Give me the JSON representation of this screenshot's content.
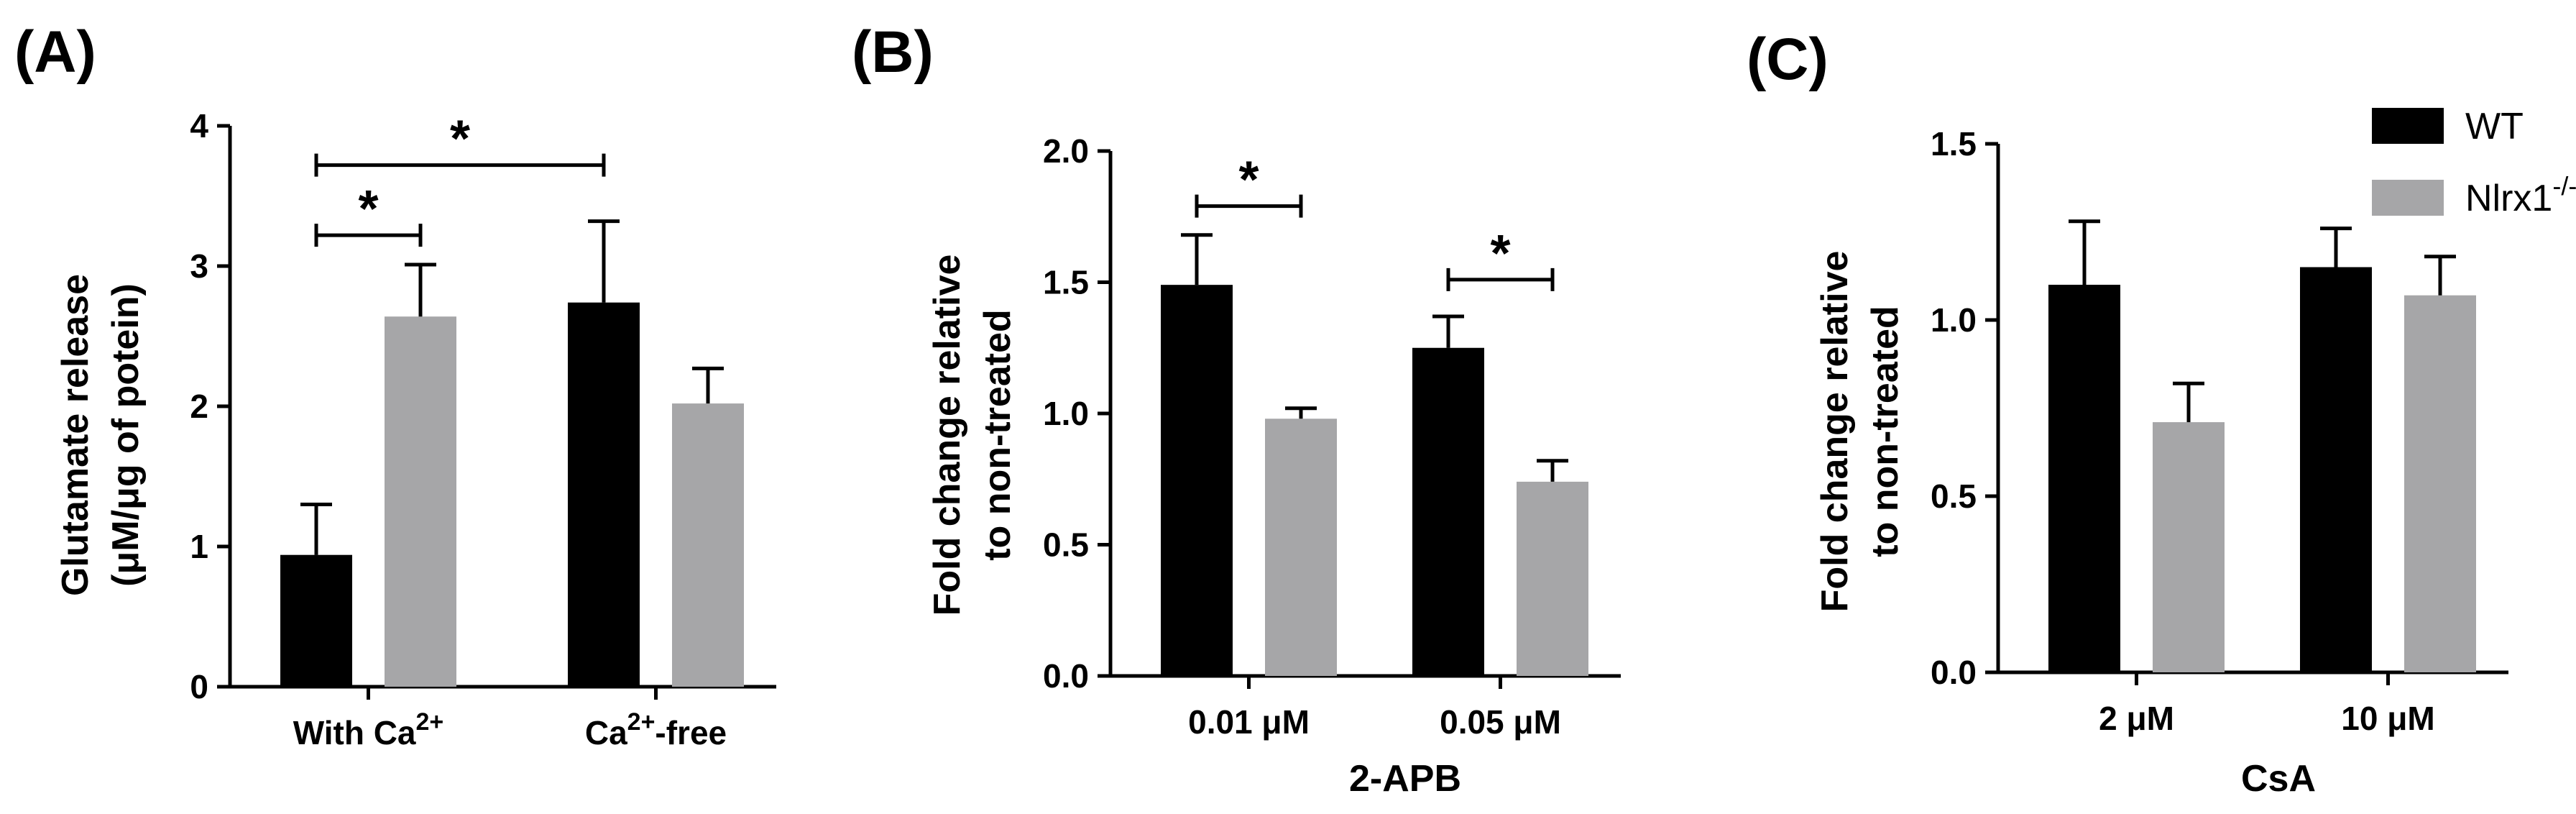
{
  "colors": {
    "wt": "#000000",
    "ko": "#a6a6a8"
  },
  "legend": [
    {
      "label": "WT",
      "color": "#000000"
    },
    {
      "label": "Nlrx1",
      "sup": "-/-",
      "color": "#a6a6a8"
    }
  ],
  "chart_data": [
    {
      "type": "bar",
      "panel_label": "(A)",
      "ylabel_lines": [
        "Glutamate release",
        "(μM/μg of potein)"
      ],
      "xlabel": "",
      "ylim": [
        0,
        4
      ],
      "yticks": [
        "0",
        "1",
        "2",
        "3",
        "4"
      ],
      "ytick_values": [
        0,
        1,
        2,
        3,
        4
      ],
      "categories": [
        {
          "main": "With Ca",
          "sup": "2+",
          "tail": ""
        },
        {
          "main": "Ca",
          "sup": "2+",
          "tail": "-free"
        }
      ],
      "series": [
        {
          "name": "WT",
          "values": [
            0.94,
            2.74
          ],
          "errors": [
            0.36,
            0.58
          ]
        },
        {
          "name": "Nlrx1-/-",
          "values": [
            2.64,
            2.02
          ],
          "errors": [
            0.37,
            0.25
          ]
        }
      ],
      "significance": [
        {
          "from": [
            0,
            0
          ],
          "to": [
            0,
            1
          ],
          "label": "*",
          "level": 3.22
        },
        {
          "from": [
            0,
            0
          ],
          "to": [
            1,
            0
          ],
          "label": "*",
          "level": 3.72
        }
      ]
    },
    {
      "type": "bar",
      "panel_label": "(B)",
      "ylabel_lines": [
        "Fold change relative",
        "to non-treated"
      ],
      "xlabel": "2-APB",
      "ylim": [
        0,
        2.0
      ],
      "yticks": [
        "0.0",
        "0.5",
        "1.0",
        "1.5",
        "2.0"
      ],
      "ytick_values": [
        0,
        0.5,
        1.0,
        1.5,
        2.0
      ],
      "categories": [
        {
          "main": "0.01 μM",
          "sup": "",
          "tail": ""
        },
        {
          "main": "0.05 μM",
          "sup": "",
          "tail": ""
        }
      ],
      "series": [
        {
          "name": "WT",
          "values": [
            1.49,
            1.25
          ],
          "errors": [
            0.19,
            0.12
          ]
        },
        {
          "name": "Nlrx1-/-",
          "values": [
            0.98,
            0.74
          ],
          "errors": [
            0.04,
            0.08
          ]
        }
      ],
      "significance": [
        {
          "from": [
            0,
            0
          ],
          "to": [
            0,
            1
          ],
          "label": "*",
          "level": 1.79
        },
        {
          "from": [
            1,
            0
          ],
          "to": [
            1,
            1
          ],
          "label": "*",
          "level": 1.51
        }
      ]
    },
    {
      "type": "bar",
      "panel_label": "(C)",
      "ylabel_lines": [
        "Fold change relative",
        "to non-treated"
      ],
      "xlabel": "CsA",
      "ylim": [
        0,
        1.5
      ],
      "yticks": [
        "0.0",
        "0.5",
        "1.0",
        "1.5"
      ],
      "ytick_values": [
        0,
        0.5,
        1.0,
        1.5
      ],
      "categories": [
        {
          "main": "2 μM",
          "sup": "",
          "tail": ""
        },
        {
          "main": "10 μM",
          "sup": "",
          "tail": ""
        }
      ],
      "series": [
        {
          "name": "WT",
          "values": [
            1.1,
            1.15
          ],
          "errors": [
            0.18,
            0.11
          ]
        },
        {
          "name": "Nlrx1-/-",
          "values": [
            0.71,
            1.07
          ],
          "errors": [
            0.11,
            0.11
          ]
        }
      ],
      "significance": []
    }
  ]
}
